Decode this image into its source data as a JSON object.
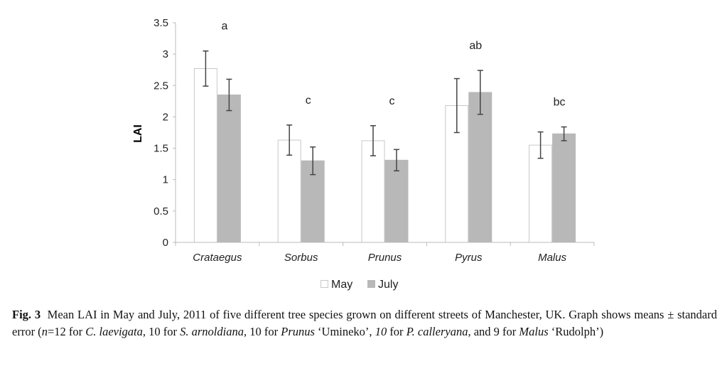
{
  "chart_data": {
    "type": "bar",
    "title": "",
    "xlabel": "",
    "ylabel": "LAI",
    "ylim": [
      0,
      3.5
    ],
    "yticks": [
      "0",
      "0.5",
      "1",
      "1.5",
      "2",
      "2.5",
      "3",
      "3.5"
    ],
    "categories": [
      "Crataegus",
      "Sorbus",
      "Prunus",
      "Pyrus",
      "Malus"
    ],
    "significance_letters": [
      "a",
      "c",
      "c",
      "ab",
      "bc"
    ],
    "legend_position": "bottom",
    "grid": false,
    "series": [
      {
        "name": "May",
        "color": "#ffffff",
        "stroke": "#c8c8c8",
        "values": [
          2.77,
          1.63,
          1.62,
          2.18,
          1.55
        ],
        "error": [
          0.28,
          0.24,
          0.24,
          0.43,
          0.21
        ]
      },
      {
        "name": "July",
        "color": "#b8b8b8",
        "stroke": "#b8b8b8",
        "values": [
          2.35,
          1.3,
          1.31,
          2.39,
          1.73
        ],
        "error": [
          0.25,
          0.22,
          0.17,
          0.35,
          0.11
        ]
      }
    ]
  },
  "caption": {
    "label": "Fig. 3",
    "text_1": "Mean LAI in May and July, 2011 of five different tree species grown on different streets of Manchester, UK. Graph shows means ± standard error (",
    "n": "n",
    "text_2": "=12 for ",
    "sp1": "C. laevigata",
    "text_3": ", 10 for ",
    "sp2": "S. arnoldiana,",
    "text_4": " 10 for ",
    "sp3": "Prunus",
    "text_5": " ‘Umineko’, ",
    "sp4": "10",
    "text_6": " for ",
    "sp5": "P. calleryana",
    "text_7": ", and 9 for ",
    "sp6": "Malus",
    "text_8": " ‘Rudolph’)"
  }
}
